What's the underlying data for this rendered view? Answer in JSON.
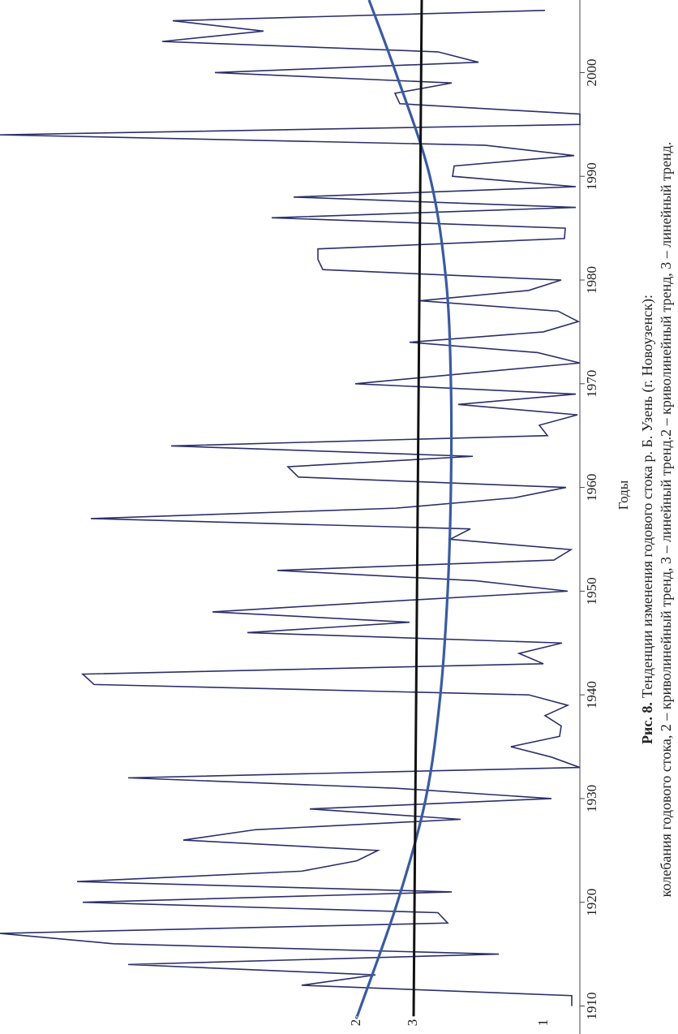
{
  "chart_data": {
    "type": "line",
    "figure_label": "Рис. 8.",
    "title": "Тенденции изменения годового стока р. Б. Узень (г. Новоузенск):",
    "subtitle": "колебания годового стока, 2 – криволинейный тренд, 3 – линейный тренд.2 – криволинейный тренд, 3 – линейный тренд.",
    "x_label": "Годы",
    "xlim": [
      1907.3,
      2007
    ],
    "xticks": [
      1910,
      1920,
      1930,
      1940,
      1950,
      1960,
      1970,
      1980,
      1990,
      2000
    ],
    "ylim": [
      0,
      715
    ],
    "series": [
      {
        "name": "1",
        "color": "#2b2f6b",
        "x": [
          1910,
          1911,
          1912,
          1913,
          1914,
          1915,
          1916,
          1917,
          1918,
          1919,
          1920,
          1921,
          1922,
          1923,
          1924,
          1925,
          1926,
          1927,
          1928,
          1929,
          1930,
          1931,
          1932,
          1933,
          1934,
          1935,
          1936,
          1937,
          1938,
          1939,
          1940,
          1941,
          1942,
          1943,
          1944,
          1945,
          1946,
          1947,
          1948,
          1949,
          1950,
          1951,
          1952,
          1953,
          1954,
          1955,
          1956,
          1957,
          1958,
          1959,
          1960,
          1961,
          1962,
          1963,
          1964,
          1965,
          1966,
          1967,
          1968,
          1969,
          1970,
          1971,
          1972,
          1973,
          1974,
          1975,
          1976,
          1977,
          1978,
          1979,
          1980,
          1981,
          1982,
          1983,
          1984,
          1985,
          1986,
          1987,
          1988,
          1989,
          1990,
          1991,
          1992,
          1993,
          1994,
          1995,
          1996,
          1997,
          1998,
          1999,
          2000,
          2001,
          2002,
          2003,
          2004,
          2005,
          2006
        ],
        "values": [
          10,
          10,
          343,
          252,
          557,
          100,
          575,
          715,
          163,
          175,
          613,
          158,
          620,
          343,
          275,
          249,
          489,
          400,
          147,
          333,
          35,
          227,
          557,
          0,
          35,
          85,
          25,
          23,
          43,
          15,
          63,
          599,
          613,
          45,
          75,
          22,
          410,
          210,
          453,
          240,
          15,
          128,
          373,
          32,
          11,
          160,
          135,
          603,
          227,
          81,
          17,
          347,
          360,
          132,
          504,
          40,
          50,
          3,
          150,
          5,
          277,
          140,
          0,
          52,
          210,
          45,
          2,
          27,
          197,
          63,
          23,
          317,
          323,
          323,
          19,
          18,
          380,
          5,
          353,
          5,
          157,
          155,
          7,
          117,
          715,
          0,
          0,
          222,
          228,
          158,
          450,
          125,
          175,
          515,
          390,
          502,
          43
        ]
      },
      {
        "name": "2",
        "color": "#3a5ba0",
        "x": [
          1909,
          1910,
          1920,
          1930,
          1940,
          1950,
          1960,
          1970,
          1980,
          1990,
          2000,
          2007
        ],
        "values": [
          275,
          270,
          225,
          190,
          172,
          163,
          159,
          159,
          165,
          185,
          227,
          260
        ]
      },
      {
        "name": "3",
        "color": "#111111",
        "x": [
          1909,
          2007
        ],
        "values": [
          205,
          195
        ]
      }
    ]
  }
}
